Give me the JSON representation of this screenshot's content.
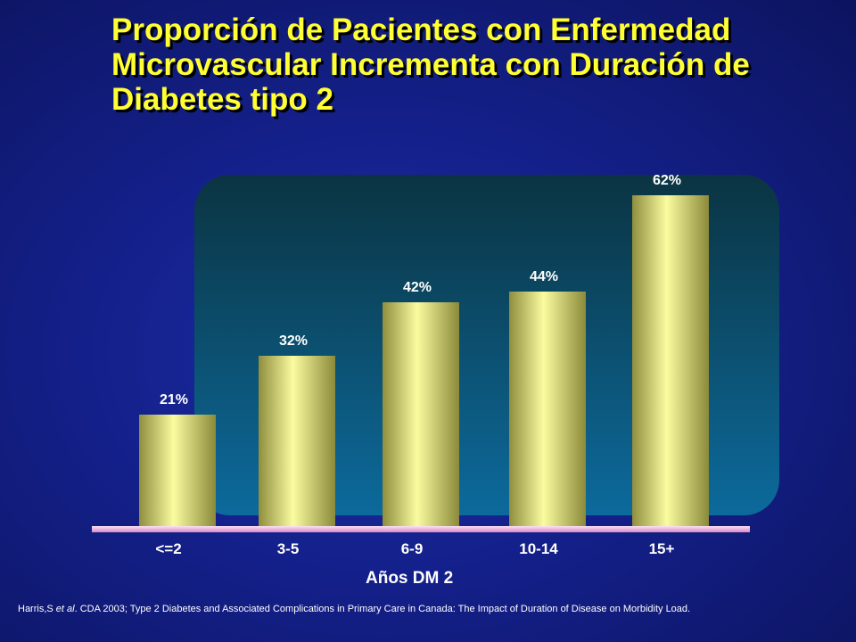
{
  "title_lines": [
    "Proporción de Pacientes con Enfermedad",
    "Microvascular Incrementa con Duración de",
    "Diabetes tipo 2"
  ],
  "colors": {
    "title": "#ffff33",
    "bar": "#f2f28a",
    "panel": "#0f4f6e",
    "baseline": "#f4b8e6"
  },
  "chart_data": {
    "type": "bar",
    "title": "Proporción de Pacientes con Enfermedad Microvascular Incrementa con Duración de Diabetes tipo 2",
    "categories": [
      "<=2",
      "3-5",
      "6-9",
      "10-14",
      "15+"
    ],
    "values": [
      21,
      32,
      42,
      44,
      62
    ],
    "data_labels": [
      "21%",
      "32%",
      "42%",
      "44%",
      "62%"
    ],
    "xlabel": "Años DM 2",
    "ylabel": "",
    "ylim": [
      0,
      70
    ],
    "grid": false,
    "legend": "none"
  },
  "citation": {
    "author": "Harris,S ",
    "etal": "et al",
    "rest": ". CDA 2003; Type 2 Diabetes and Associated Complications in Primary Care in Canada: The Impact of Duration of Disease on Morbidity Load."
  }
}
